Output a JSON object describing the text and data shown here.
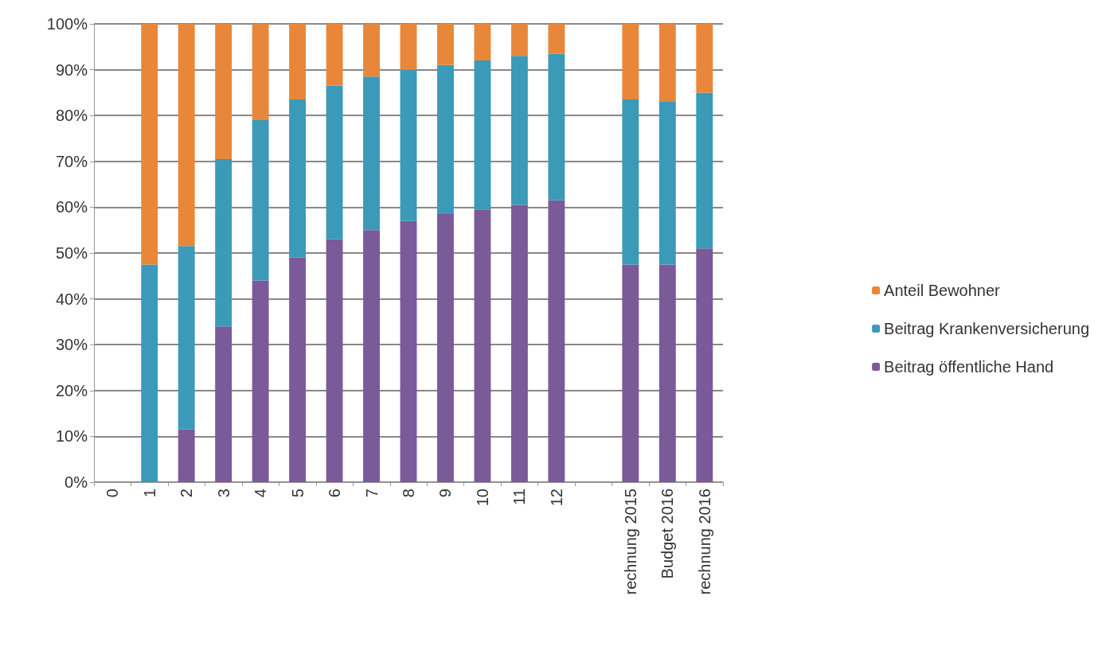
{
  "chart_data": {
    "type": "bar",
    "stacked": true,
    "categories": [
      "0",
      "1",
      "2",
      "3",
      "4",
      "5",
      "6",
      "7",
      "8",
      "9",
      "10",
      "11",
      "12",
      null,
      "rechnung 2015",
      "Budget 2016",
      "rechnung 2016"
    ],
    "series": [
      {
        "name": "Beitrag öffentliche Hand",
        "color": "#7b5a9a",
        "values": [
          0,
          0,
          11.5,
          34,
          44,
          49,
          53,
          55,
          57,
          58.5,
          59.5,
          60.5,
          61.5,
          null,
          47.5,
          47.5,
          51
        ]
      },
      {
        "name": "Beitrag Krankenversicherung",
        "color": "#3b9ab8",
        "values": [
          0,
          47.5,
          40,
          36.5,
          35,
          34.5,
          33.5,
          33.5,
          33,
          32.5,
          32.5,
          32.5,
          32,
          null,
          36,
          35.5,
          34
        ]
      },
      {
        "name": "Anteil Bewohner",
        "color": "#e8873a",
        "values": [
          0,
          52.5,
          48.5,
          29.5,
          21,
          16.5,
          13.5,
          11.5,
          10,
          9,
          8,
          7,
          6.5,
          null,
          16.5,
          17,
          15
        ]
      }
    ],
    "ylim": [
      0,
      100
    ],
    "yticks": [
      {
        "value": 0,
        "label": "0%"
      },
      {
        "value": 10,
        "label": "10%"
      },
      {
        "value": 20,
        "label": "20%"
      },
      {
        "value": 30,
        "label": "30%"
      },
      {
        "value": 40,
        "label": "40%"
      },
      {
        "value": 50,
        "label": "50%"
      },
      {
        "value": 60,
        "label": "60%"
      },
      {
        "value": 70,
        "label": "70%"
      },
      {
        "value": 80,
        "label": "80%"
      },
      {
        "value": 90,
        "label": "90%"
      },
      {
        "value": 100,
        "label": "100%"
      }
    ],
    "grid": "y",
    "legend": "right"
  }
}
